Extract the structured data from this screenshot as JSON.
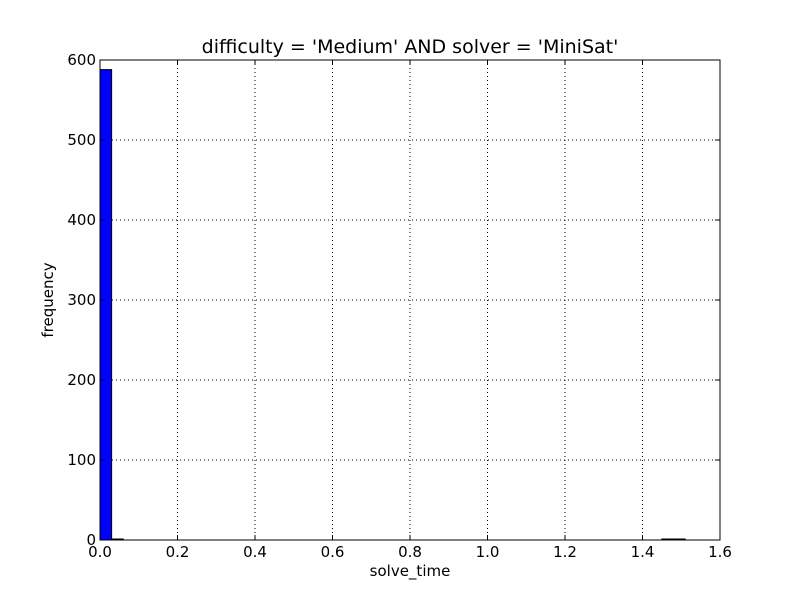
{
  "chart_data": {
    "type": "bar",
    "title": "difficulty = 'Medium' AND solver = 'MiniSat'",
    "xlabel": "solve_time",
    "ylabel": "frequency",
    "xlim": [
      0.0,
      1.6
    ],
    "ylim": [
      0,
      600
    ],
    "xticks": [
      "0.0",
      "0.2",
      "0.4",
      "0.6",
      "0.8",
      "1.0",
      "1.2",
      "1.4",
      "1.6"
    ],
    "yticks": [
      "0",
      "100",
      "200",
      "300",
      "400",
      "500",
      "600"
    ],
    "grid": true,
    "bar_color": "#0000ff",
    "bins": [
      {
        "x0": 0.0,
        "x1": 0.03,
        "count": 588
      },
      {
        "x0": 0.03,
        "x1": 0.06,
        "count": 1
      },
      {
        "x0": 1.45,
        "x1": 1.51,
        "count": 1
      }
    ]
  }
}
